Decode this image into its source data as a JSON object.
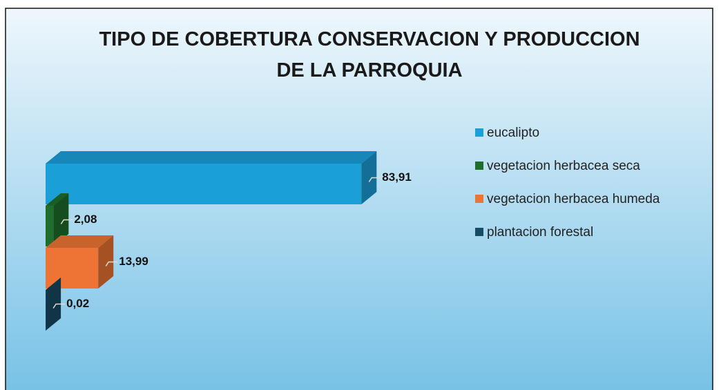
{
  "chart_data": {
    "type": "bar",
    "orientation": "horizontal",
    "title": "TIPO DE COBERTURA CONSERVACION Y PRODUCCION DE LA PARROQUIA",
    "categories": [
      "eucalipto",
      "vegetacion herbacea seca",
      "vegetacion herbacea humeda",
      "plantacion forestal"
    ],
    "values": [
      83.91,
      2.08,
      13.99,
      0.02
    ],
    "value_labels": [
      "83,91",
      "2,08",
      "13,99",
      "0,02"
    ],
    "colors": [
      "#1a9fd9",
      "#1f6e2c",
      "#ed7434",
      "#174c66"
    ],
    "xlim": [
      0,
      100
    ],
    "legend": "right"
  }
}
